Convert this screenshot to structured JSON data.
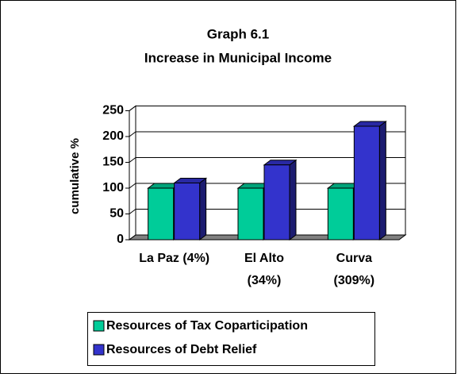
{
  "chart_data": {
    "type": "bar3d",
    "title": "Graph 6.1",
    "subtitle": "Increase in Municipal Income",
    "y_label": "cumulative %",
    "categories": [
      "La Paz (4%)",
      "El Alto (34%)",
      "Curva (309%)"
    ],
    "series": [
      {
        "name": "Resources of Tax Coparticipation",
        "color": "#00cc99",
        "values": [
          100,
          100,
          100
        ]
      },
      {
        "name": "Resources of Debt Relief",
        "color": "#3333cc",
        "values": [
          110,
          145,
          220
        ]
      }
    ],
    "ylim": [
      0,
      250
    ],
    "yticks": [
      0,
      50,
      100,
      150,
      200,
      250
    ],
    "grid": true
  }
}
